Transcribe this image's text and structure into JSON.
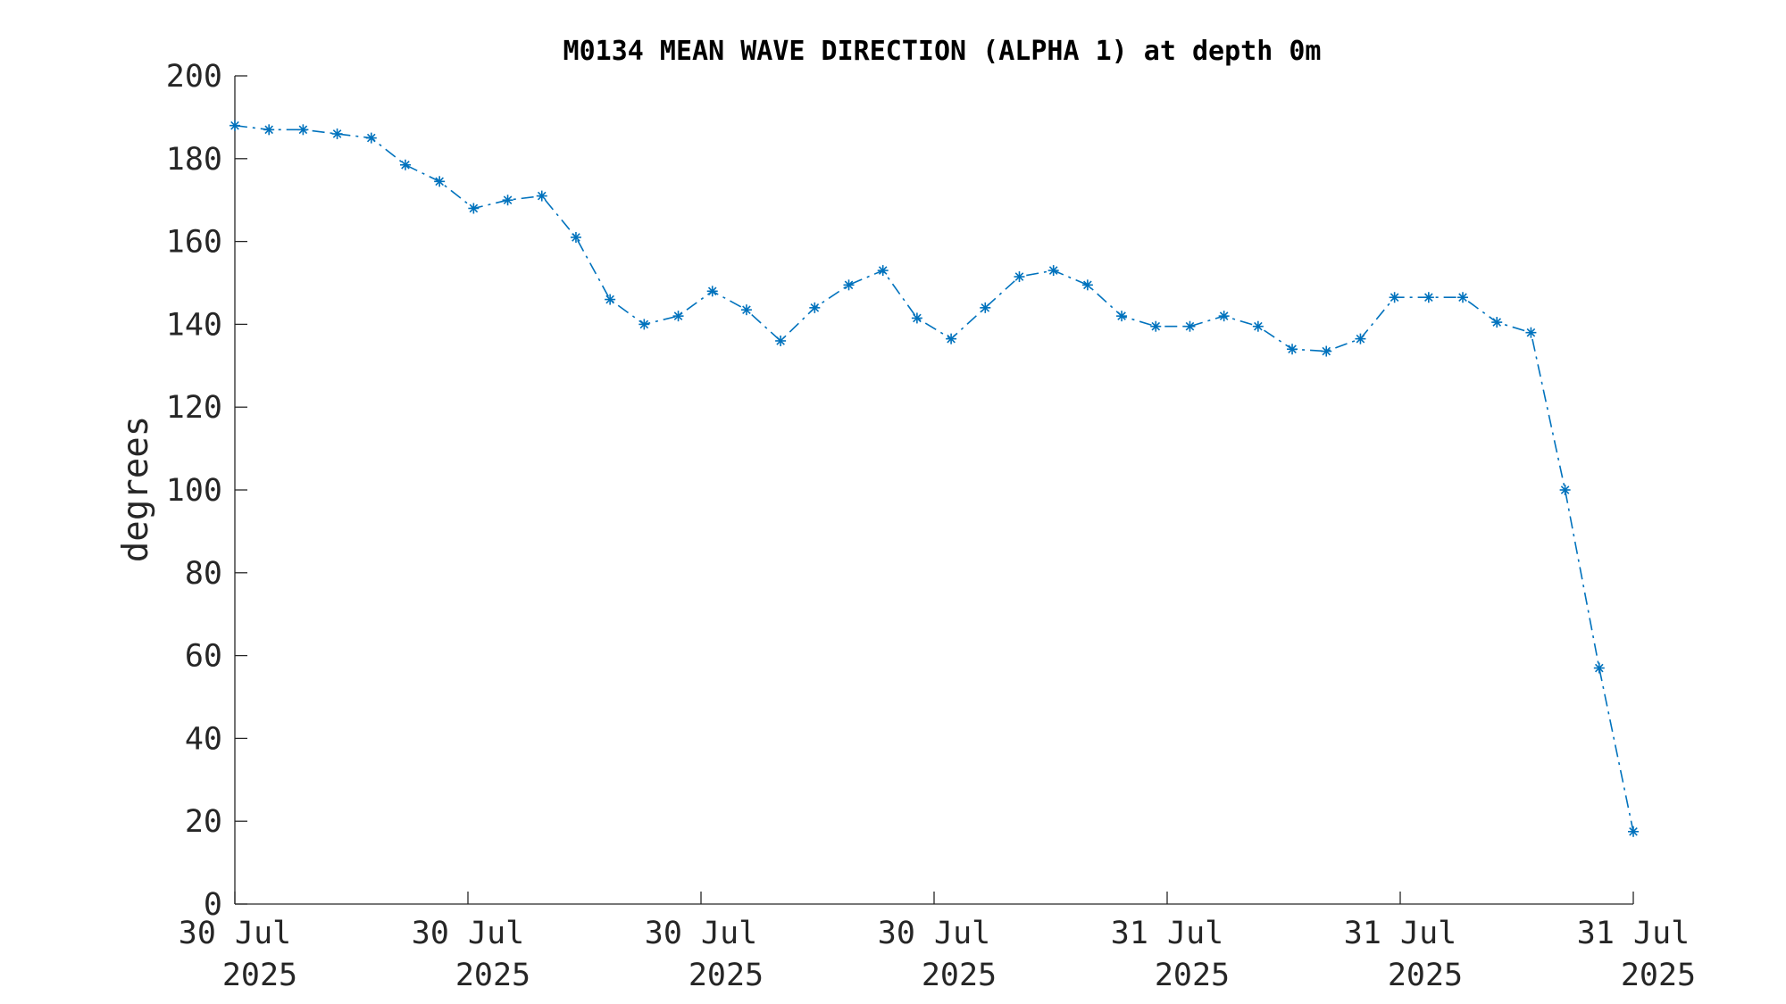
{
  "chart_data": {
    "type": "line",
    "title": "M0134 MEAN WAVE DIRECTION (ALPHA 1) at depth 0m",
    "xlabel": "",
    "ylabel": "degrees",
    "ylim": [
      0,
      200
    ],
    "yticks": [
      0,
      20,
      40,
      60,
      80,
      100,
      120,
      140,
      160,
      180,
      200
    ],
    "xticks": [
      {
        "line1": "30 Jul",
        "line2": "2025"
      },
      {
        "line1": "30 Jul",
        "line2": "2025"
      },
      {
        "line1": "30 Jul",
        "line2": "2025"
      },
      {
        "line1": "30 Jul",
        "line2": "2025"
      },
      {
        "line1": "31 Jul",
        "line2": "2025"
      },
      {
        "line1": "31 Jul",
        "line2": "2025"
      },
      {
        "line1": "31 Jul",
        "line2": "2025"
      }
    ],
    "grid": false,
    "legend": "none",
    "color": "#0072BD",
    "marker": "asterisk",
    "line_style": "dash-dot",
    "series": [
      {
        "values": [
          188,
          187,
          187,
          186,
          185,
          178.5,
          174.5,
          168,
          170,
          171,
          161,
          146,
          140,
          142,
          148,
          143.5,
          136,
          144,
          149.5,
          153,
          141.5,
          136.5,
          144,
          151.5,
          153,
          149.5,
          142,
          139.5,
          139.5,
          142,
          139.5,
          134,
          133.5,
          136.5,
          146.5,
          146.5,
          146.5,
          140.5,
          138,
          100,
          57,
          17.5
        ]
      }
    ]
  }
}
